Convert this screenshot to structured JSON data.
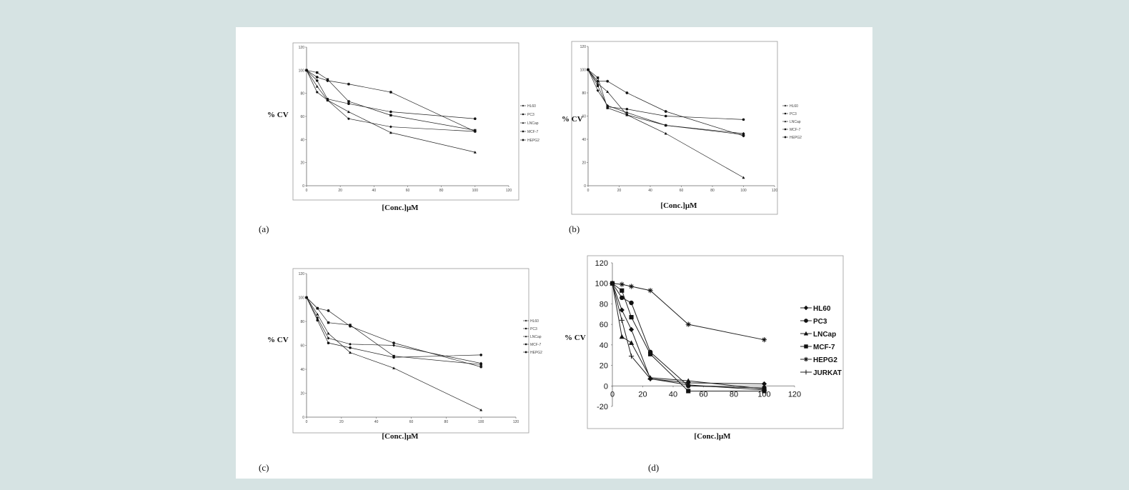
{
  "chart_data": [
    {
      "type": "line",
      "panel_label": "(a)",
      "xlabel": "[Conc.]μM",
      "ylabel": "% CV",
      "xlim": [
        0,
        120
      ],
      "ylim": [
        0,
        120
      ],
      "xticks": [
        0,
        20,
        40,
        60,
        80,
        100,
        120
      ],
      "yticks": [
        0,
        20,
        40,
        60,
        80,
        100,
        120
      ],
      "x": [
        0,
        6.25,
        12.5,
        25,
        50,
        100
      ],
      "series": [
        {
          "name": "HL60",
          "marker": "diamond",
          "values": [
            100,
            81,
            74,
            58,
            51,
            47
          ]
        },
        {
          "name": "PC3",
          "marker": "circle",
          "values": [
            100,
            91,
            75,
            71,
            64,
            58
          ]
        },
        {
          "name": "LNCap",
          "marker": "triangle",
          "values": [
            100,
            86,
            74,
            64,
            46,
            29
          ]
        },
        {
          "name": "MCF-7",
          "marker": "square",
          "values": [
            100,
            98,
            92,
            73,
            61,
            48
          ]
        },
        {
          "name": "HEPG2",
          "marker": "star",
          "values": [
            100,
            94,
            91,
            88,
            81,
            47
          ]
        }
      ],
      "legend": "right"
    },
    {
      "type": "line",
      "panel_label": "(b)",
      "xlabel": "[Conc.]μM",
      "ylabel": "% CV",
      "xlim": [
        0,
        120
      ],
      "ylim": [
        0,
        120
      ],
      "xticks": [
        0,
        20,
        40,
        60,
        80,
        100,
        120
      ],
      "yticks": [
        0,
        20,
        40,
        60,
        80,
        100,
        120
      ],
      "x": [
        0,
        6.25,
        12.5,
        25,
        50,
        100
      ],
      "series": [
        {
          "name": "HL60",
          "marker": "diamond",
          "values": [
            100,
            82,
            69,
            63,
            52,
            45
          ]
        },
        {
          "name": "PC3",
          "marker": "circle",
          "values": [
            100,
            86,
            68,
            66,
            60,
            57
          ]
        },
        {
          "name": "LNCap",
          "marker": "triangle",
          "values": [
            100,
            88,
            81,
            61,
            45,
            7
          ]
        },
        {
          "name": "MCF-7",
          "marker": "square",
          "values": [
            100,
            93,
            67,
            61,
            52,
            44
          ]
        },
        {
          "name": "HEPG2",
          "marker": "star",
          "values": [
            100,
            90,
            90,
            80,
            64,
            43
          ]
        }
      ],
      "legend": "right"
    },
    {
      "type": "line",
      "panel_label": "(c)",
      "xlabel": "[Conc.]μM",
      "ylabel": "% CV",
      "xlim": [
        0,
        120
      ],
      "ylim": [
        0,
        120
      ],
      "xticks": [
        0,
        20,
        40,
        60,
        80,
        100,
        120
      ],
      "yticks": [
        0,
        20,
        40,
        60,
        80,
        100,
        120
      ],
      "x": [
        0,
        6.25,
        12.5,
        25,
        50,
        100
      ],
      "series": [
        {
          "name": "HL60",
          "marker": "diamond",
          "values": [
            100,
            83,
            66,
            61,
            60,
            45
          ]
        },
        {
          "name": "PC3",
          "marker": "circle",
          "values": [
            100,
            81,
            62,
            58,
            50,
            52
          ]
        },
        {
          "name": "LNCap",
          "marker": "triangle",
          "values": [
            100,
            86,
            70,
            54,
            41,
            6
          ]
        },
        {
          "name": "MCF-7",
          "marker": "square",
          "values": [
            100,
            91,
            79,
            77,
            51,
            44
          ]
        },
        {
          "name": "HEPG2",
          "marker": "star",
          "values": [
            100,
            91,
            89,
            76,
            62,
            42
          ]
        }
      ],
      "legend": "right"
    },
    {
      "type": "line",
      "panel_label": "(d)",
      "xlabel": "[Conc.]μM",
      "ylabel": "% CV",
      "xlim": [
        0,
        120
      ],
      "ylim": [
        -20,
        120
      ],
      "xticks": [
        0,
        20,
        40,
        60,
        80,
        100,
        120
      ],
      "yticks": [
        -20,
        0,
        20,
        40,
        60,
        80,
        100,
        120
      ],
      "x": [
        0,
        6.25,
        12.5,
        25,
        50,
        100
      ],
      "series": [
        {
          "name": "HL60",
          "marker": "diamond",
          "values": [
            100,
            74,
            55,
            7,
            3,
            2
          ]
        },
        {
          "name": "PC3",
          "marker": "circle",
          "values": [
            100,
            86,
            81,
            33,
            0,
            -2
          ]
        },
        {
          "name": "LNCap",
          "marker": "triangle",
          "values": [
            100,
            48,
            42,
            8,
            5,
            -3
          ]
        },
        {
          "name": "MCF-7",
          "marker": "square",
          "values": [
            100,
            93,
            67,
            31,
            -5,
            -5
          ]
        },
        {
          "name": "HEPG2",
          "marker": "star",
          "values": [
            100,
            99,
            97,
            93,
            60,
            45
          ]
        },
        {
          "name": "JURKAT",
          "marker": "cross",
          "values": [
            100,
            64,
            29,
            7,
            1,
            -4
          ]
        }
      ],
      "legend": "right"
    }
  ]
}
